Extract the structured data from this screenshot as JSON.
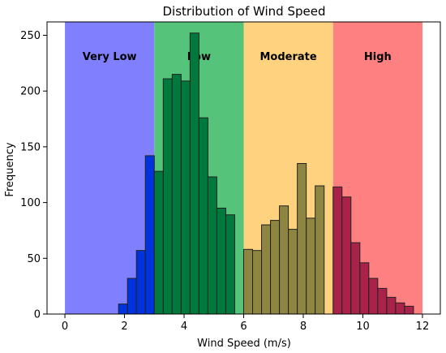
{
  "chart_data": {
    "type": "bar",
    "title": "Distribution of Wind Speed",
    "xlabel": "Wind Speed (m/s)",
    "ylabel": "Frequency",
    "xlim": [
      -0.6,
      12.6
    ],
    "ylim": [
      0,
      262
    ],
    "xticks": [
      0,
      2,
      4,
      6,
      8,
      10,
      12
    ],
    "yticks": [
      0,
      50,
      100,
      150,
      200,
      250
    ],
    "grid": false,
    "bin_width": 0.3,
    "bands": [
      {
        "label": "Very Low",
        "start": 0,
        "end": 3,
        "color": "#8080ff"
      },
      {
        "label": "Low",
        "start": 3,
        "end": 6,
        "color": "#55c47a"
      },
      {
        "label": "Moderate",
        "start": 6,
        "end": 9,
        "color": "#ffd27f"
      },
      {
        "label": "High",
        "start": 9,
        "end": 12,
        "color": "#ff8080"
      }
    ],
    "series": [
      {
        "bars": [
          {
            "x": 1.8,
            "value": 9
          },
          {
            "x": 2.1,
            "value": 32
          },
          {
            "x": 2.4,
            "value": 57
          },
          {
            "x": 2.7,
            "value": 142
          }
        ],
        "color": "#0033dd"
      },
      {
        "bars": [
          {
            "x": 3.0,
            "value": 128
          },
          {
            "x": 3.3,
            "value": 211
          },
          {
            "x": 3.6,
            "value": 215
          },
          {
            "x": 3.9,
            "value": 209
          },
          {
            "x": 4.2,
            "value": 252
          },
          {
            "x": 4.5,
            "value": 176
          },
          {
            "x": 4.8,
            "value": 123
          },
          {
            "x": 5.1,
            "value": 95
          },
          {
            "x": 5.4,
            "value": 89
          }
        ],
        "color": "#007a3c"
      },
      {
        "bars": [
          {
            "x": 6.0,
            "value": 58
          },
          {
            "x": 6.3,
            "value": 57
          },
          {
            "x": 6.6,
            "value": 80
          },
          {
            "x": 6.9,
            "value": 84
          },
          {
            "x": 7.2,
            "value": 97
          },
          {
            "x": 7.5,
            "value": 76
          },
          {
            "x": 7.8,
            "value": 135
          },
          {
            "x": 8.1,
            "value": 86
          },
          {
            "x": 8.4,
            "value": 115
          }
        ],
        "color": "#8d8540"
      },
      {
        "bars": [
          {
            "x": 9.0,
            "value": 114
          },
          {
            "x": 9.3,
            "value": 105
          },
          {
            "x": 9.6,
            "value": 64
          },
          {
            "x": 9.9,
            "value": 46
          },
          {
            "x": 10.2,
            "value": 32
          },
          {
            "x": 10.5,
            "value": 23
          },
          {
            "x": 10.8,
            "value": 15
          },
          {
            "x": 11.1,
            "value": 10
          },
          {
            "x": 11.4,
            "value": 7
          }
        ],
        "color": "#a8224a"
      }
    ]
  }
}
